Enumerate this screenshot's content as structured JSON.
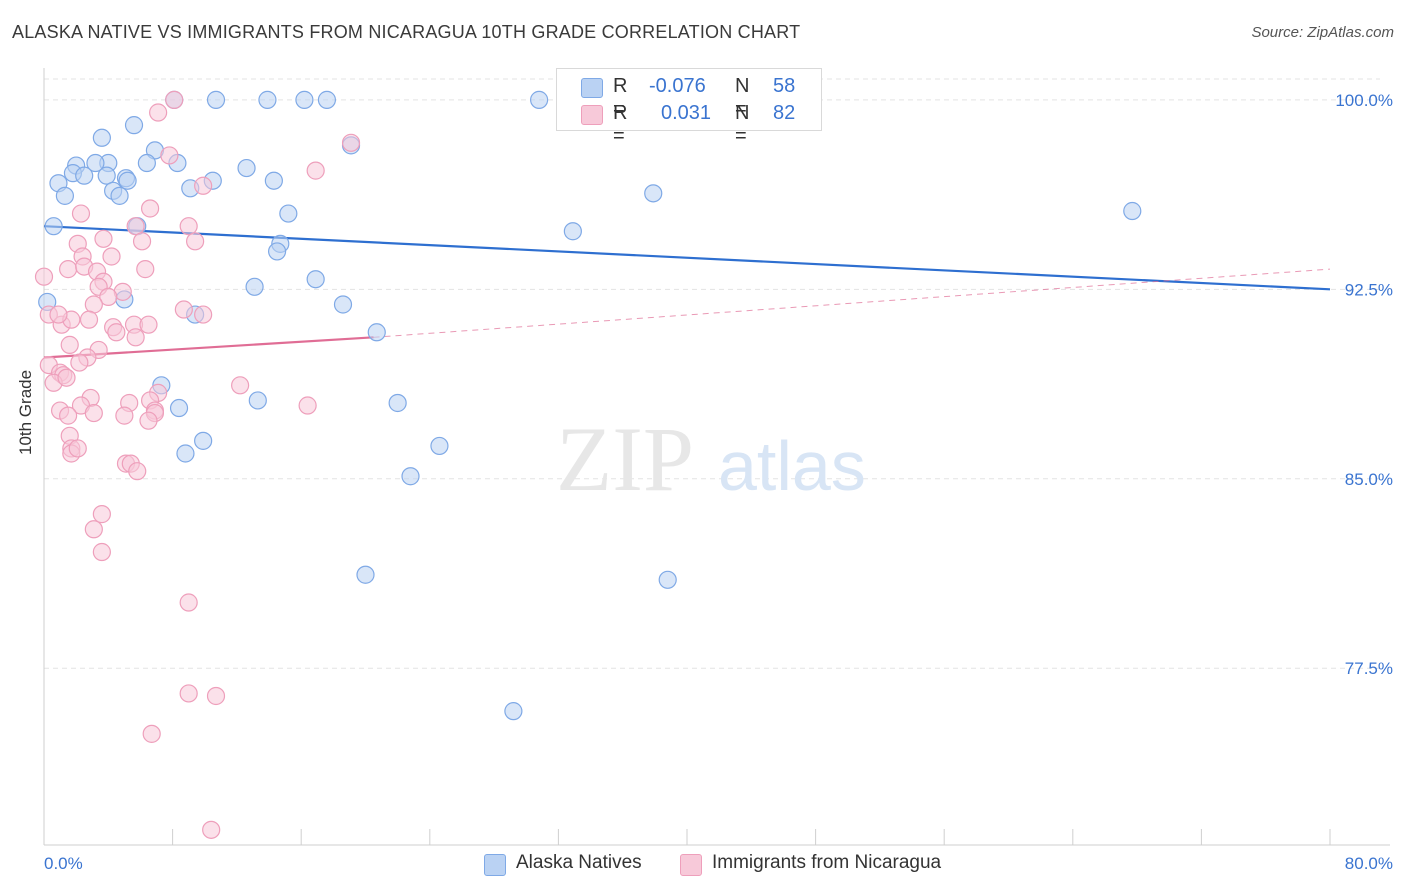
{
  "title": "ALASKA NATIVE VS IMMIGRANTS FROM NICARAGUA 10TH GRADE CORRELATION CHART",
  "source": "Source: ZipAtlas.com",
  "watermark": {
    "zip": "ZIP",
    "atlas": "atlas"
  },
  "legend_top": [
    {
      "r_label": "R =",
      "r_value": "-0.076",
      "n_label": "N =",
      "n_value": "58"
    },
    {
      "r_label": "R =",
      "r_value": "0.031",
      "n_label": "N =",
      "n_value": "82"
    }
  ],
  "chart_data": {
    "type": "scatter",
    "xlabel": "",
    "ylabel": "10th Grade",
    "x_tick_labels": [
      "0.0%",
      "80.0%"
    ],
    "y_tick_labels": [
      "100.0%",
      "92.5%",
      "85.0%",
      "77.5%"
    ],
    "y_ticks": [
      100.0,
      92.5,
      85.0,
      77.5
    ],
    "xlim": [
      0,
      80
    ],
    "ylim": [
      70.5,
      101.5
    ],
    "grid": true,
    "legend_position": "top-center",
    "series": [
      {
        "name": "Alaska Natives",
        "color": "#7fa9e6",
        "fill": "#bad2f3",
        "trend": {
          "x": [
            0,
            80
          ],
          "y": [
            95.0,
            92.5
          ],
          "color": "#2e6fd0",
          "dashed_extension": false
        },
        "points": [
          [
            8.1,
            100.0
          ],
          [
            10.7,
            100.0
          ],
          [
            13.9,
            100.0
          ],
          [
            16.2,
            100.0
          ],
          [
            17.6,
            100.0
          ],
          [
            30.8,
            100.0
          ],
          [
            44.8,
            100.0
          ],
          [
            5.6,
            99.0
          ],
          [
            3.6,
            98.5
          ],
          [
            6.9,
            98.0
          ],
          [
            2.0,
            97.4
          ],
          [
            4.0,
            97.5
          ],
          [
            3.9,
            97.0
          ],
          [
            5.1,
            96.9
          ],
          [
            3.2,
            97.5
          ],
          [
            1.8,
            97.1
          ],
          [
            2.5,
            97.0
          ],
          [
            8.3,
            97.5
          ],
          [
            12.6,
            97.3
          ],
          [
            6.4,
            97.5
          ],
          [
            0.9,
            96.7
          ],
          [
            5.2,
            96.8
          ],
          [
            14.3,
            96.8
          ],
          [
            10.5,
            96.8
          ],
          [
            9.1,
            96.5
          ],
          [
            4.3,
            96.4
          ],
          [
            1.3,
            96.2
          ],
          [
            4.7,
            96.2
          ],
          [
            37.9,
            96.3
          ],
          [
            15.2,
            95.5
          ],
          [
            67.7,
            95.6
          ],
          [
            0.6,
            95.0
          ],
          [
            5.8,
            95.0
          ],
          [
            32.9,
            94.8
          ],
          [
            14.7,
            94.3
          ],
          [
            14.5,
            94.0
          ],
          [
            16.9,
            92.9
          ],
          [
            13.1,
            92.6
          ],
          [
            5.0,
            92.1
          ],
          [
            0.2,
            92.0
          ],
          [
            18.6,
            91.9
          ],
          [
            9.4,
            91.5
          ],
          [
            20.7,
            90.8
          ],
          [
            7.3,
            88.7
          ],
          [
            13.3,
            88.1
          ],
          [
            22.0,
            88.0
          ],
          [
            8.4,
            87.8
          ],
          [
            9.9,
            86.5
          ],
          [
            8.8,
            86.0
          ],
          [
            24.6,
            86.3
          ],
          [
            22.8,
            85.1
          ],
          [
            20.0,
            81.2
          ],
          [
            38.8,
            81.0
          ],
          [
            29.2,
            75.8
          ],
          [
            43.6,
            100.0
          ],
          [
            19.1,
            98.2
          ]
        ]
      },
      {
        "name": "Immigrants from Nicaragua",
        "color": "#ee9fbb",
        "fill": "#f7c9d9",
        "trend": {
          "x": [
            0,
            20.5
          ],
          "y": [
            89.8,
            90.6
          ],
          "color": "#e06d95",
          "dashed_extension": true,
          "dashed_to": [
            80,
            93.3
          ]
        },
        "points": [
          [
            8.1,
            100.0
          ],
          [
            7.1,
            99.5
          ],
          [
            7.8,
            97.8
          ],
          [
            16.9,
            97.2
          ],
          [
            9.9,
            96.6
          ],
          [
            19.1,
            98.3
          ],
          [
            6.6,
            95.7
          ],
          [
            2.3,
            95.5
          ],
          [
            5.7,
            95.0
          ],
          [
            9.0,
            95.0
          ],
          [
            9.4,
            94.4
          ],
          [
            2.1,
            94.3
          ],
          [
            3.7,
            94.5
          ],
          [
            6.1,
            94.4
          ],
          [
            2.4,
            93.8
          ],
          [
            4.2,
            93.8
          ],
          [
            1.5,
            93.3
          ],
          [
            2.5,
            93.4
          ],
          [
            6.3,
            93.3
          ],
          [
            3.3,
            93.2
          ],
          [
            0.0,
            93.0
          ],
          [
            3.7,
            92.8
          ],
          [
            3.4,
            92.6
          ],
          [
            4.9,
            92.4
          ],
          [
            4.0,
            92.2
          ],
          [
            3.1,
            91.9
          ],
          [
            8.7,
            91.7
          ],
          [
            9.9,
            91.5
          ],
          [
            0.3,
            91.5
          ],
          [
            1.1,
            91.1
          ],
          [
            1.7,
            91.3
          ],
          [
            2.8,
            91.3
          ],
          [
            4.3,
            91.0
          ],
          [
            5.6,
            91.1
          ],
          [
            6.5,
            91.1
          ],
          [
            4.5,
            90.8
          ],
          [
            5.7,
            90.6
          ],
          [
            1.6,
            90.3
          ],
          [
            3.4,
            90.1
          ],
          [
            2.7,
            89.8
          ],
          [
            0.3,
            89.5
          ],
          [
            2.2,
            89.6
          ],
          [
            1.0,
            89.2
          ],
          [
            1.2,
            89.1
          ],
          [
            0.6,
            88.8
          ],
          [
            12.2,
            88.7
          ],
          [
            7.1,
            88.4
          ],
          [
            2.9,
            88.2
          ],
          [
            6.6,
            88.1
          ],
          [
            5.3,
            88.0
          ],
          [
            2.3,
            87.9
          ],
          [
            16.4,
            87.9
          ],
          [
            1.0,
            87.7
          ],
          [
            6.9,
            87.7
          ],
          [
            5.0,
            87.5
          ],
          [
            6.9,
            87.6
          ],
          [
            3.1,
            87.6
          ],
          [
            1.5,
            87.5
          ],
          [
            6.5,
            87.3
          ],
          [
            1.6,
            86.7
          ],
          [
            1.7,
            86.2
          ],
          [
            1.7,
            86.0
          ],
          [
            2.1,
            86.2
          ],
          [
            5.1,
            85.6
          ],
          [
            5.4,
            85.6
          ],
          [
            5.8,
            85.3
          ],
          [
            3.6,
            83.6
          ],
          [
            3.1,
            83.0
          ],
          [
            3.6,
            82.1
          ],
          [
            9.0,
            80.1
          ],
          [
            9.0,
            76.5
          ],
          [
            10.7,
            76.4
          ],
          [
            6.7,
            74.9
          ],
          [
            10.4,
            71.1
          ],
          [
            0.9,
            91.5
          ],
          [
            1.4,
            89.0
          ]
        ]
      }
    ]
  }
}
